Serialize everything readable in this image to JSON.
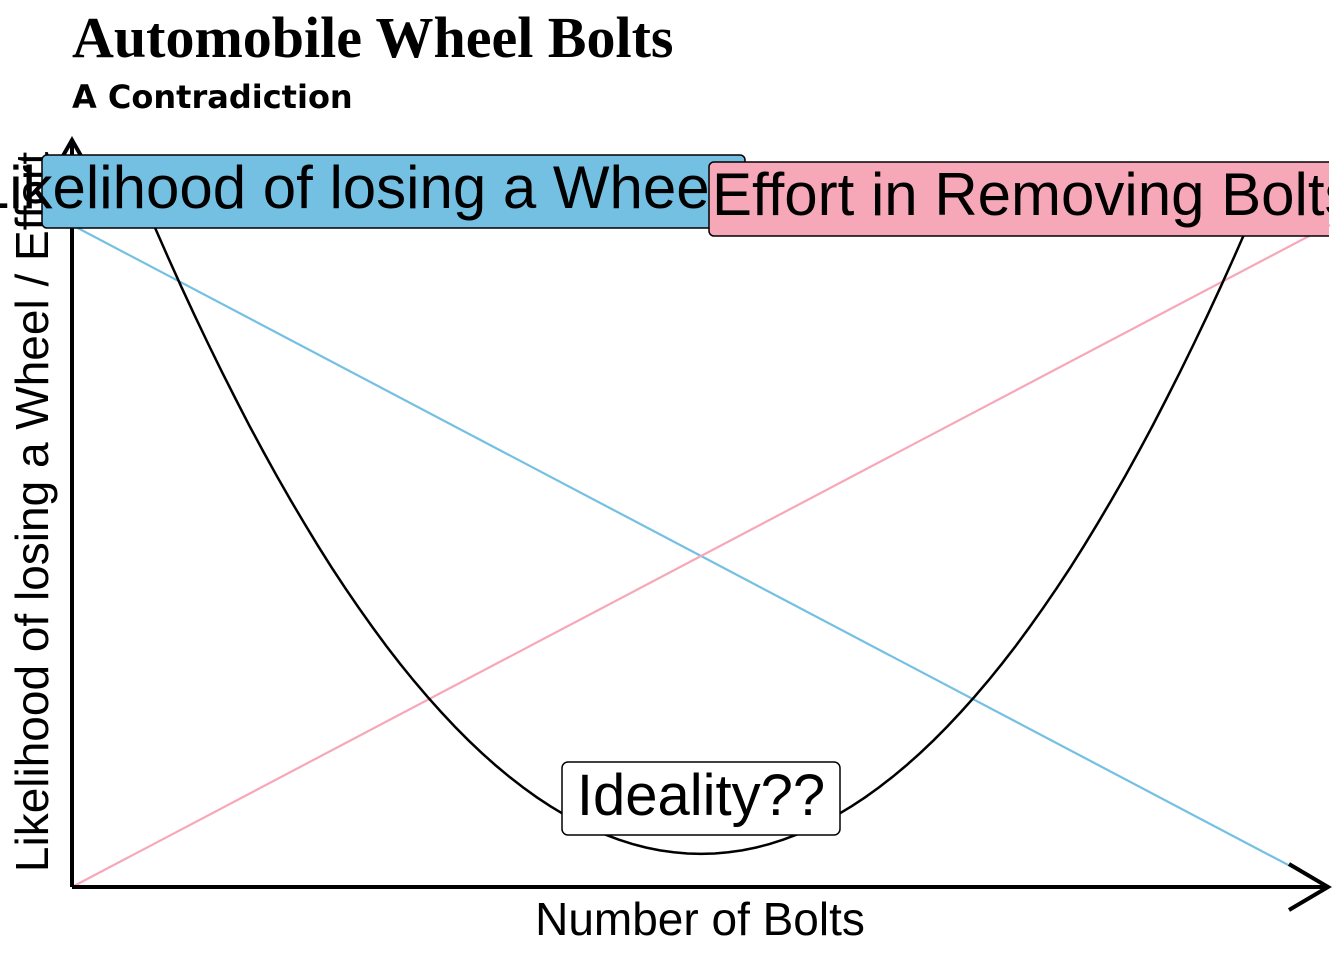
{
  "chart_data": {
    "type": "line",
    "title": "Automobile Wheel Bolts",
    "subtitle": "A Contradiction",
    "xlabel": "Number of Bolts",
    "ylabel": "Likelihood of losing a Wheel / Effort",
    "xlim": [
      0,
      10
    ],
    "ylim": [
      0,
      10
    ],
    "grid": false,
    "series": [
      {
        "name": "Likelihood of losing a Wheel",
        "color": "#74c0e3",
        "x": [
          0,
          10
        ],
        "y": [
          10,
          0
        ]
      },
      {
        "name": "Effort in Removing Bolts",
        "color": "#f7a8b8",
        "x": [
          0,
          10
        ],
        "y": [
          0,
          10
        ]
      },
      {
        "name": "",
        "color": "#000000",
        "x": [
          0.65,
          1,
          2,
          3,
          4,
          5,
          6,
          7,
          8,
          9,
          9.35
        ],
        "y": [
          10,
          8.6,
          5.3,
          2.9,
          1.2,
          0.5,
          1.2,
          2.9,
          5.3,
          8.6,
          10
        ]
      }
    ],
    "annotations": [
      {
        "text": "Likelihood of losing a Wheel",
        "color": "#74c0e3",
        "x": 0,
        "y": 10
      },
      {
        "text": "Effort in Removing Bolts",
        "color": "#f7a8b8",
        "x": 10,
        "y": 10
      },
      {
        "text": "Ideality??",
        "color": "#ffffff",
        "x": 5,
        "y": 1
      }
    ]
  }
}
